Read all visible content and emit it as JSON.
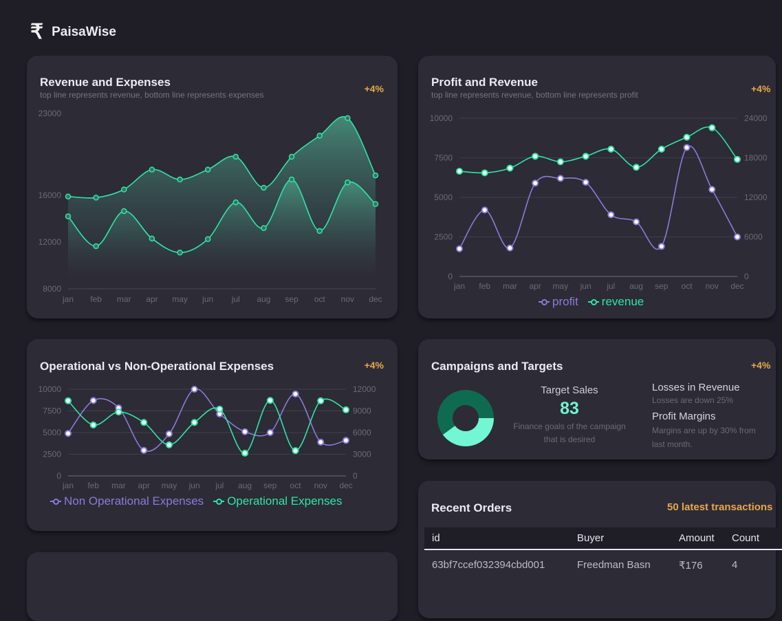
{
  "brand": {
    "name": "PaisaWise",
    "logo_icon": "rupee-icon",
    "logo_glyph": "₹"
  },
  "colors": {
    "accent": "#2ee6a6",
    "purple": "#8b7bd8",
    "badge": "#e7a84a",
    "card": "#2d2b36",
    "bg": "#1f1e27"
  },
  "cards": {
    "revenue_expenses": {
      "title": "Revenue and Expenses",
      "subtitle": "top line represents revenue, bottom line represents expenses",
      "badge": "+4%"
    },
    "profit_revenue": {
      "title": "Profit and Revenue",
      "subtitle": "top line represents revenue, bottom line represents profit",
      "badge": "+4%"
    },
    "op_expenses": {
      "title": "Operational vs Non-Operational Expenses",
      "badge": "+4%"
    },
    "campaigns": {
      "title": "Campaigns and Targets",
      "badge": "+4%",
      "target_label": "Target Sales",
      "target_value": "83",
      "target_desc": "Finance goals of the campaign that is desired",
      "losses_title": "Losses in Revenue",
      "losses_desc": "Losses are down 25%",
      "margins_title": "Profit Margins",
      "margins_desc": "Margins are up by 30% from last month.",
      "donut": [
        {
          "value": 60,
          "color": "#0f6b4f"
        },
        {
          "value": 40,
          "color": "#72f7d2"
        }
      ]
    },
    "orders": {
      "title": "Recent Orders",
      "link": "50 latest transactions",
      "columns": [
        "id",
        "Buyer",
        "Amount",
        "Count"
      ],
      "rows": [
        [
          "63bf7ccef032394cbd001",
          "Freedman Basn",
          "₹176",
          "4"
        ]
      ]
    }
  },
  "chart_data": [
    {
      "type": "area",
      "categories": [
        "jan",
        "feb",
        "mar",
        "apr",
        "may",
        "jun",
        "jul",
        "aug",
        "sep",
        "oct",
        "nov",
        "dec"
      ],
      "yticks": [
        8000,
        12000,
        16000,
        23000
      ],
      "ylim": [
        8000,
        23000
      ],
      "grid": false,
      "series": [
        {
          "values": [
            15900,
            15800,
            16500,
            18200,
            17350,
            18200,
            19300,
            16650,
            19300,
            21100,
            22600,
            17700
          ]
        },
        {
          "values": [
            14200,
            11650,
            14650,
            12300,
            11100,
            12250,
            15400,
            13200,
            17350,
            12950,
            17100,
            15250
          ]
        }
      ]
    },
    {
      "type": "line",
      "categories": [
        "jan",
        "feb",
        "mar",
        "apr",
        "may",
        "jun",
        "jul",
        "aug",
        "sep",
        "oct",
        "nov",
        "dec"
      ],
      "yticks_left": [
        0,
        2500,
        5000,
        7500,
        10000
      ],
      "yticks_right": [
        0,
        6000,
        12000,
        18000,
        24000
      ],
      "grid": true,
      "legend": "bottom",
      "series": [
        {
          "name": "profit",
          "axis": "left",
          "values": [
            1750,
            4200,
            1800,
            5900,
            6200,
            5950,
            3900,
            3450,
            1900,
            8150,
            5500,
            2500
          ]
        },
        {
          "name": "revenue",
          "axis": "right",
          "values": [
            15960,
            15720,
            16440,
            18240,
            17400,
            18240,
            19320,
            16560,
            19320,
            21120,
            22560,
            17760
          ]
        }
      ]
    },
    {
      "type": "line",
      "categories": [
        "jan",
        "feb",
        "mar",
        "apr",
        "may",
        "jun",
        "jul",
        "aug",
        "sep",
        "oct",
        "nov",
        "dec"
      ],
      "yticks_left": [
        0,
        2500,
        5000,
        7500,
        10000
      ],
      "yticks_right": [
        0,
        3000,
        6000,
        9000,
        12000
      ],
      "grid": true,
      "legend": "bottom",
      "series": [
        {
          "name": "Non Operational Expenses",
          "axis": "left",
          "values": [
            4900,
            8700,
            7850,
            2950,
            4850,
            10000,
            7150,
            5100,
            5000,
            9450,
            3900,
            4100
          ]
        },
        {
          "name": "Operational Expenses",
          "axis": "right",
          "values": [
            10400,
            7050,
            8850,
            7400,
            4300,
            7400,
            9250,
            3150,
            10450,
            3500,
            10400,
            9150
          ]
        }
      ]
    }
  ]
}
